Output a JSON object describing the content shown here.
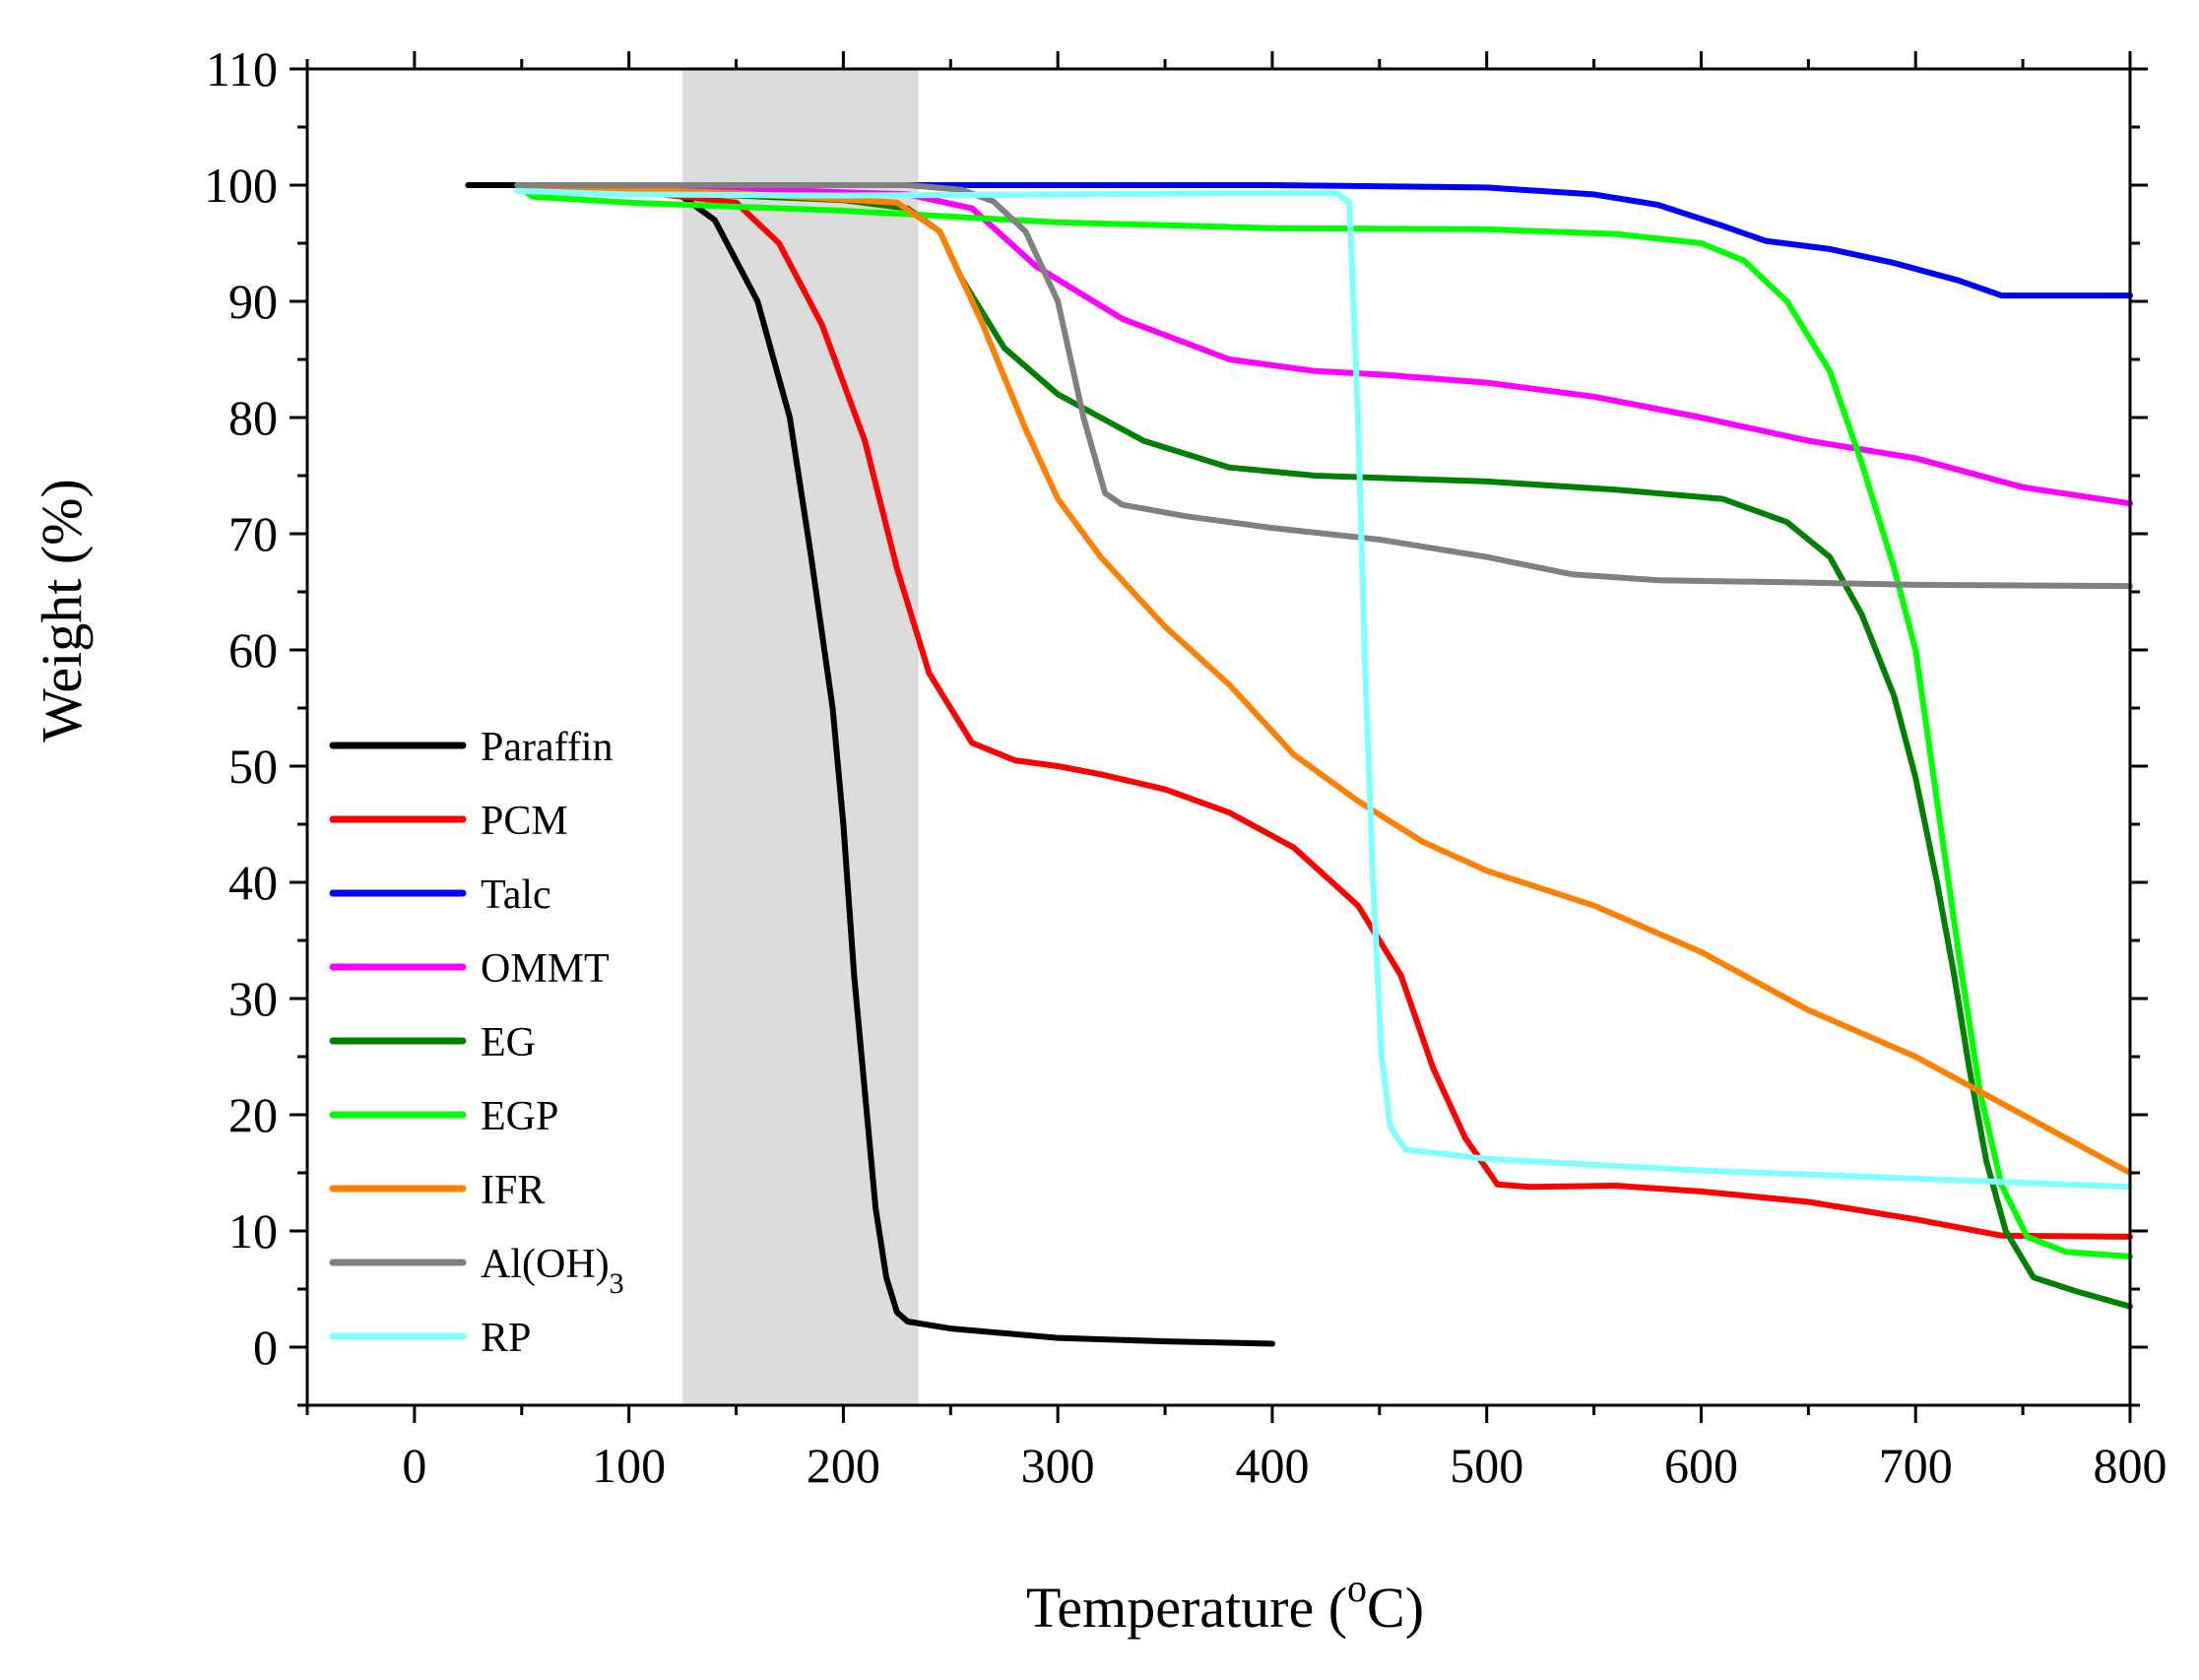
{
  "chart_data": {
    "type": "line",
    "title": "",
    "xlabel": "Temperature (",
    "xlabel_sup": "o",
    "xlabel_unit": "C)",
    "ylabel": "Weight (%)",
    "xlim": [
      -50,
      800
    ],
    "ylim": [
      -5,
      110
    ],
    "xticks": [
      0,
      100,
      200,
      300,
      400,
      500,
      600,
      700,
      800
    ],
    "yticks": [
      0,
      10,
      20,
      30,
      40,
      50,
      60,
      70,
      80,
      90,
      100,
      110
    ],
    "shaded_region": {
      "x_start": 125,
      "x_end": 235,
      "color": "#dcdcdc"
    },
    "legend_position": "middle-left",
    "series": [
      {
        "name": "Paraffin",
        "legend": "Paraffin",
        "color": "#000000",
        "points": [
          [
            25,
            100
          ],
          [
            100,
            100
          ],
          [
            125,
            99
          ],
          [
            140,
            97
          ],
          [
            160,
            90
          ],
          [
            175,
            80
          ],
          [
            185,
            68
          ],
          [
            195,
            55
          ],
          [
            200,
            45
          ],
          [
            205,
            32
          ],
          [
            210,
            22
          ],
          [
            215,
            12
          ],
          [
            220,
            6
          ],
          [
            225,
            3
          ],
          [
            230,
            2.2
          ],
          [
            250,
            1.6
          ],
          [
            300,
            0.8
          ],
          [
            350,
            0.5
          ],
          [
            400,
            0.3
          ]
        ]
      },
      {
        "name": "PCM",
        "legend": "PCM",
        "color": "#ff0000",
        "points": [
          [
            48,
            100
          ],
          [
            100,
            99.5
          ],
          [
            150,
            98.5
          ],
          [
            170,
            95
          ],
          [
            190,
            88
          ],
          [
            210,
            78
          ],
          [
            225,
            67
          ],
          [
            240,
            58
          ],
          [
            260,
            52
          ],
          [
            280,
            50.5
          ],
          [
            300,
            50
          ],
          [
            320,
            49.3
          ],
          [
            350,
            48
          ],
          [
            380,
            46
          ],
          [
            410,
            43
          ],
          [
            440,
            38
          ],
          [
            460,
            32
          ],
          [
            475,
            24
          ],
          [
            490,
            18
          ],
          [
            505,
            14
          ],
          [
            520,
            13.8
          ],
          [
            560,
            13.9
          ],
          [
            600,
            13.4
          ],
          [
            650,
            12.5
          ],
          [
            700,
            11
          ],
          [
            740,
            9.6
          ],
          [
            800,
            9.5
          ]
        ]
      },
      {
        "name": "Talc",
        "legend": "Talc",
        "color": "#0000ff",
        "points": [
          [
            48,
            100
          ],
          [
            200,
            100
          ],
          [
            400,
            100
          ],
          [
            500,
            99.8
          ],
          [
            550,
            99.2
          ],
          [
            580,
            98.3
          ],
          [
            610,
            96.5
          ],
          [
            630,
            95.2
          ],
          [
            660,
            94.5
          ],
          [
            690,
            93.3
          ],
          [
            720,
            91.8
          ],
          [
            740,
            90.5
          ],
          [
            770,
            90.5
          ],
          [
            800,
            90.5
          ]
        ]
      },
      {
        "name": "OMMT",
        "legend": "OMMT",
        "color": "#ff00ff",
        "points": [
          [
            48,
            100
          ],
          [
            150,
            99.7
          ],
          [
            230,
            99.2
          ],
          [
            260,
            98
          ],
          [
            290,
            93
          ],
          [
            330,
            88.5
          ],
          [
            380,
            85
          ],
          [
            420,
            84
          ],
          [
            450,
            83.7
          ],
          [
            500,
            83
          ],
          [
            550,
            81.8
          ],
          [
            600,
            80
          ],
          [
            650,
            78
          ],
          [
            700,
            76.5
          ],
          [
            750,
            74
          ],
          [
            800,
            72.6
          ]
        ]
      },
      {
        "name": "EG",
        "legend": "EG",
        "color": "#008000",
        "points": [
          [
            48,
            100
          ],
          [
            100,
            99.5
          ],
          [
            200,
            98.7
          ],
          [
            230,
            98
          ],
          [
            245,
            96
          ],
          [
            255,
            92
          ],
          [
            275,
            86
          ],
          [
            300,
            82
          ],
          [
            340,
            78
          ],
          [
            380,
            75.7
          ],
          [
            420,
            75
          ],
          [
            500,
            74.5
          ],
          [
            560,
            73.8
          ],
          [
            610,
            73
          ],
          [
            640,
            71
          ],
          [
            660,
            68
          ],
          [
            675,
            63
          ],
          [
            690,
            56
          ],
          [
            700,
            49
          ],
          [
            710,
            40
          ],
          [
            718,
            32
          ],
          [
            725,
            24
          ],
          [
            733,
            16
          ],
          [
            742,
            10
          ],
          [
            755,
            6
          ],
          [
            775,
            4.8
          ],
          [
            800,
            3.5
          ]
        ]
      },
      {
        "name": "EGP",
        "legend": "EGP",
        "color": "#00ff00",
        "points": [
          [
            48,
            100
          ],
          [
            55,
            99
          ],
          [
            100,
            98.5
          ],
          [
            200,
            97.8
          ],
          [
            300,
            96.8
          ],
          [
            400,
            96.3
          ],
          [
            500,
            96.2
          ],
          [
            560,
            95.8
          ],
          [
            600,
            95
          ],
          [
            620,
            93.5
          ],
          [
            640,
            90
          ],
          [
            660,
            84
          ],
          [
            675,
            76
          ],
          [
            690,
            67
          ],
          [
            700,
            60
          ],
          [
            710,
            47
          ],
          [
            720,
            34
          ],
          [
            730,
            22
          ],
          [
            740,
            14
          ],
          [
            752,
            9.5
          ],
          [
            770,
            8.2
          ],
          [
            800,
            7.8
          ]
        ]
      },
      {
        "name": "IFR",
        "legend": "IFR",
        "color": "#ff8000",
        "points": [
          [
            48,
            100
          ],
          [
            150,
            99.3
          ],
          [
            225,
            98.5
          ],
          [
            245,
            96
          ],
          [
            265,
            88
          ],
          [
            285,
            79
          ],
          [
            300,
            73
          ],
          [
            320,
            68
          ],
          [
            350,
            62
          ],
          [
            380,
            57
          ],
          [
            410,
            51
          ],
          [
            440,
            47
          ],
          [
            470,
            43.5
          ],
          [
            500,
            41
          ],
          [
            550,
            38
          ],
          [
            600,
            34
          ],
          [
            650,
            29
          ],
          [
            700,
            25
          ],
          [
            750,
            20
          ],
          [
            800,
            15
          ]
        ]
      },
      {
        "name": "Al(OH)3",
        "legend": "Al(OH)",
        "legend_sub": "3",
        "color": "#808080",
        "points": [
          [
            48,
            100
          ],
          [
            150,
            100
          ],
          [
            230,
            100
          ],
          [
            255,
            99.6
          ],
          [
            270,
            98.6
          ],
          [
            285,
            96
          ],
          [
            300,
            90
          ],
          [
            312,
            80
          ],
          [
            322,
            73.5
          ],
          [
            330,
            72.5
          ],
          [
            360,
            71.5
          ],
          [
            400,
            70.5
          ],
          [
            450,
            69.5
          ],
          [
            500,
            68
          ],
          [
            540,
            66.5
          ],
          [
            580,
            66
          ],
          [
            650,
            65.8
          ],
          [
            700,
            65.6
          ],
          [
            800,
            65.5
          ]
        ]
      },
      {
        "name": "RP",
        "legend": "RP",
        "color": "#80ffff",
        "points": [
          [
            48,
            99.5
          ],
          [
            100,
            99.2
          ],
          [
            200,
            99.1
          ],
          [
            300,
            99.2
          ],
          [
            380,
            99.3
          ],
          [
            430,
            99.3
          ],
          [
            436,
            98.5
          ],
          [
            440,
            80
          ],
          [
            443,
            60
          ],
          [
            447,
            40
          ],
          [
            451,
            25
          ],
          [
            455,
            19
          ],
          [
            462,
            17
          ],
          [
            500,
            16.2
          ],
          [
            600,
            15.2
          ],
          [
            700,
            14.5
          ],
          [
            800,
            13.8
          ]
        ]
      }
    ]
  }
}
